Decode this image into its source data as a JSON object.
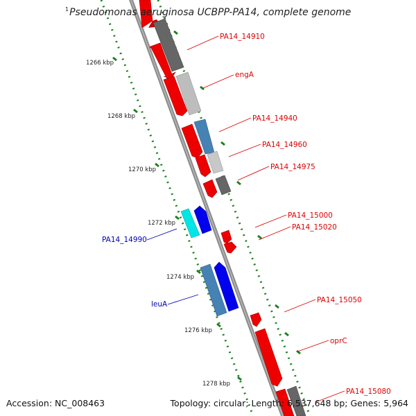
{
  "title": {
    "marker": "1",
    "text": "Pseudomonas aeruginosa UCBPP-PA14, complete genome"
  },
  "footer": {
    "accession_label": "Accession:",
    "accession": "NC_008463",
    "topology_label": "Topology:",
    "topology": "circular",
    "length_label": "Length:",
    "length": "6,537,648 bp",
    "genes_label": "Genes:",
    "genes": "5,964"
  },
  "colors": {
    "backbone": "#8c8c8c",
    "ticks": "#1e7f1e",
    "forward_label": "#dd0000",
    "reverse_label": "#0000bb"
  },
  "ticks": [
    {
      "label": "1266 kbp",
      "kbp": 1266
    },
    {
      "label": "1268 kbp",
      "kbp": 1268
    },
    {
      "label": "1270 kbp",
      "kbp": 1270
    },
    {
      "label": "1272 kbp",
      "kbp": 1272
    },
    {
      "label": "1274 kbp",
      "kbp": 1274
    },
    {
      "label": "1276 kbp",
      "kbp": 1276
    },
    {
      "label": "1278 kbp",
      "kbp": 1278
    }
  ],
  "gene_labels": [
    {
      "text": "PA14_14910",
      "strand": "forward"
    },
    {
      "text": "engA",
      "strand": "forward"
    },
    {
      "text": "PA14_14940",
      "strand": "forward"
    },
    {
      "text": "PA14_14960",
      "strand": "forward"
    },
    {
      "text": "PA14_14975",
      "strand": "forward"
    },
    {
      "text": "PA14_15000",
      "strand": "forward"
    },
    {
      "text": "PA14_15020",
      "strand": "forward"
    },
    {
      "text": "PA14_15050",
      "strand": "forward"
    },
    {
      "text": "oprC",
      "strand": "forward"
    },
    {
      "text": "PA14_15080",
      "strand": "forward"
    },
    {
      "text": "PA14_14990",
      "strand": "reverse"
    },
    {
      "text": "leuA",
      "strand": "reverse"
    }
  ]
}
